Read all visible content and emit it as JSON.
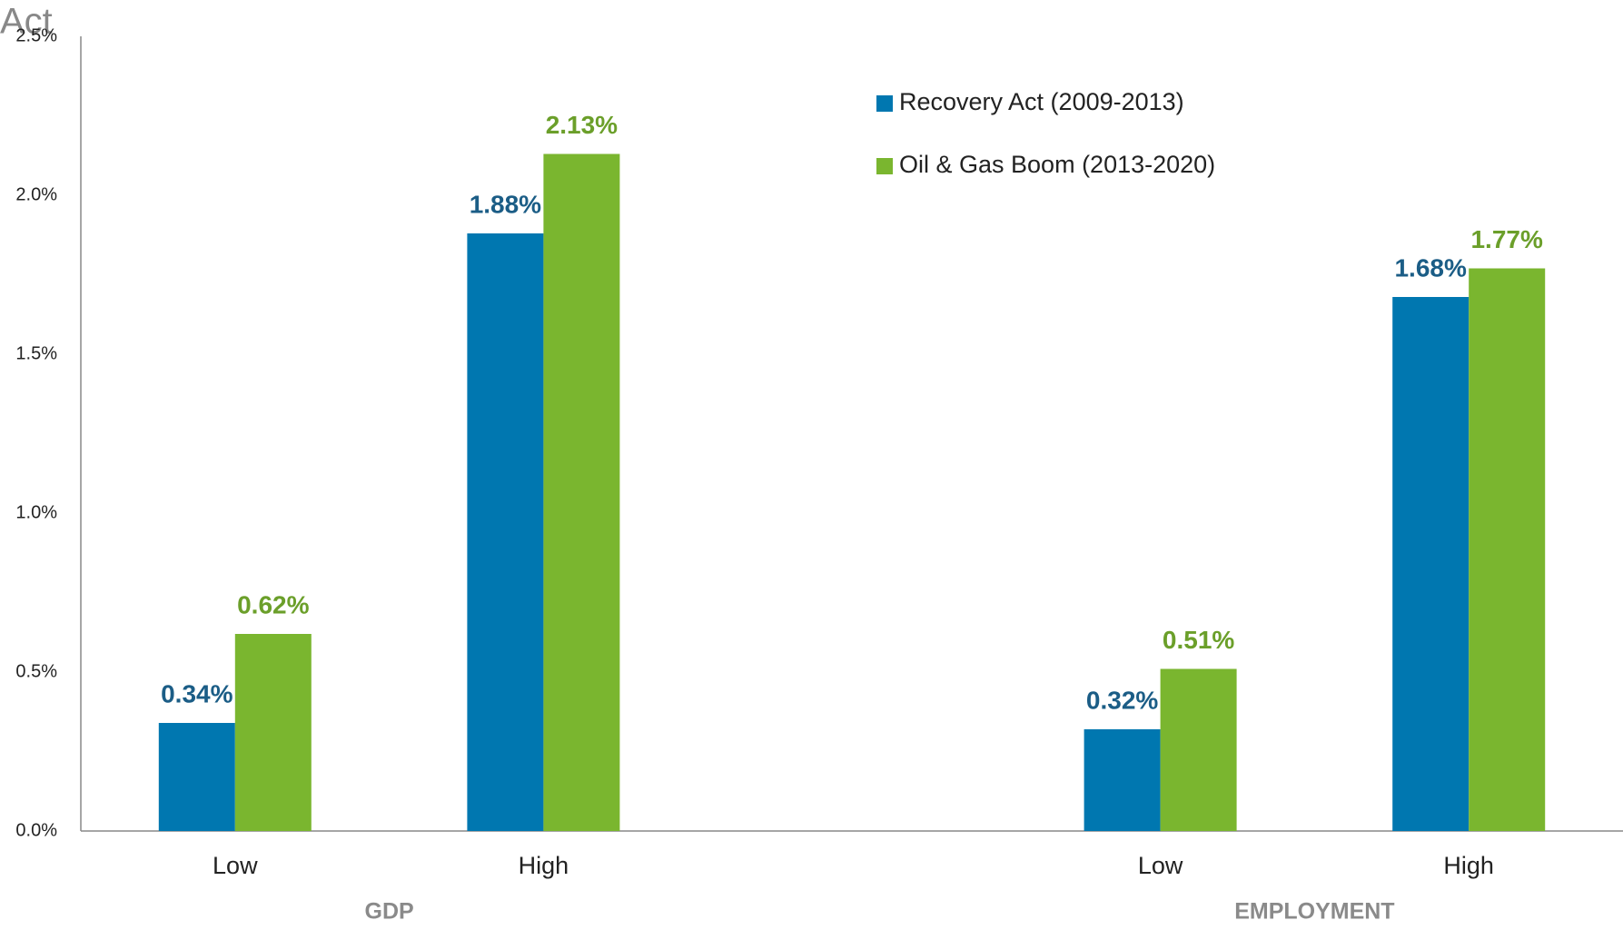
{
  "chart_data": {
    "type": "bar",
    "title": "Act",
    "categories": [
      "Low",
      "High",
      null,
      "Low",
      "High"
    ],
    "group_labels": [
      "GDP",
      "EMPLOYMENT"
    ],
    "series": [
      {
        "name": "Recovery Act (2009-2013)",
        "color": "#0077b0",
        "label_color": "#1b5d86",
        "values": [
          0.34,
          1.88,
          null,
          0.32,
          1.68
        ],
        "value_labels": [
          "0.34%",
          "1.88%",
          null,
          "0.32%",
          "1.68%"
        ]
      },
      {
        "name": "Oil & Gas Boom (2013-2020)",
        "color": "#7ab62f",
        "label_color": "#6b9f2a",
        "values": [
          0.62,
          2.13,
          null,
          0.51,
          1.77
        ],
        "value_labels": [
          "0.62%",
          "2.13%",
          null,
          "0.51%",
          "1.77%"
        ]
      }
    ],
    "ylim": [
      0,
      2.5
    ],
    "yticks": [
      {
        "value": 0,
        "label": "0.0%"
      },
      {
        "value": 0.5,
        "label": "0.5%"
      },
      {
        "value": 1,
        "label": "1.0%"
      },
      {
        "value": 1.5,
        "label": "1.5%"
      },
      {
        "value": 2,
        "label": "2.0%"
      },
      {
        "value": 2.5,
        "label": "2.5%"
      }
    ],
    "grid": false
  }
}
